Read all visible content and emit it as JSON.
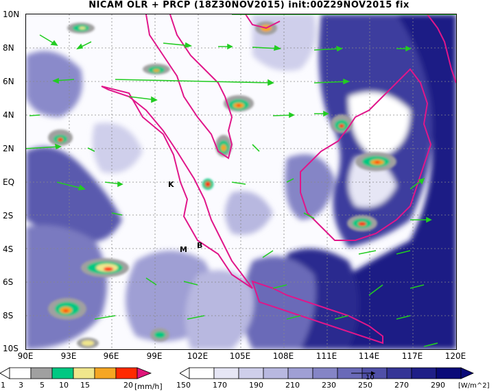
{
  "title": "NICAM OLR + PRCP (18Z30NOV2015) init:00Z29NOV2015 fix",
  "lat_labels": [
    "10N",
    "8N",
    "6N",
    "4N",
    "2N",
    "EQ",
    "2S",
    "4S",
    "6S",
    "8S",
    "10S"
  ],
  "lon_labels": [
    "90E",
    "93E",
    "96E",
    "99E",
    "102E",
    "105E",
    "108E",
    "111E",
    "114E",
    "117E",
    "120E"
  ],
  "stations": [
    "K",
    "M",
    "B"
  ],
  "precip_bar": {
    "labels": [
      "1",
      "3",
      "5",
      "10",
      "15",
      "20"
    ],
    "unit": "[mm/h]",
    "colors": [
      "#ffffff",
      "#a0a0a0",
      "#00c882",
      "#f0e68c",
      "#f5a623",
      "#ff2a00",
      "#e0167a"
    ]
  },
  "olr_bar": {
    "labels": [
      "150",
      "170",
      "190",
      "210",
      "230",
      "250",
      "270",
      "290"
    ],
    "unit": "[W/m^2]",
    "vector_ref": "10",
    "colors": [
      "#ffffff",
      "#e6e6f5",
      "#cfcfeb",
      "#b8b8e0",
      "#9f9fd4",
      "#8585c6",
      "#6a6ab8",
      "#5050a8",
      "#353596",
      "#1f1f87",
      "#0a0a78"
    ]
  },
  "colors": {
    "coast": "#e0168a",
    "wind": "#22cc22",
    "grid": "#888888"
  }
}
